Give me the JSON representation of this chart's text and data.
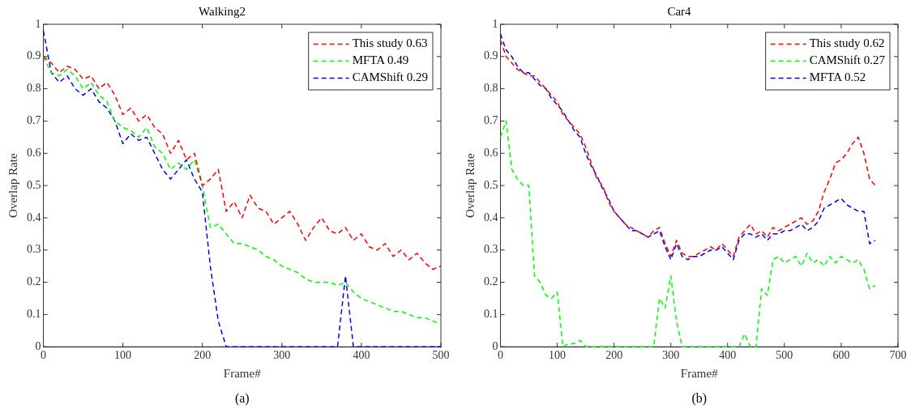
{
  "chart_data": [
    {
      "type": "line",
      "title": "Walking2",
      "xlabel": "Frame#",
      "ylabel": "Overlap Rate",
      "annotations": [
        "(a)"
      ],
      "x": [
        0,
        10,
        20,
        30,
        40,
        50,
        60,
        70,
        80,
        90,
        100,
        110,
        120,
        130,
        140,
        150,
        160,
        170,
        180,
        190,
        200,
        210,
        220,
        230,
        240,
        250,
        260,
        270,
        280,
        290,
        300,
        310,
        320,
        330,
        340,
        350,
        360,
        370,
        380,
        390,
        400,
        410,
        420,
        430,
        440,
        450,
        460,
        470,
        480,
        490,
        500
      ],
      "xlim": [
        0,
        500
      ],
      "xticks": [
        0,
        100,
        200,
        300,
        400,
        500
      ],
      "ylim": [
        0,
        1
      ],
      "yticks": [
        0,
        0.1,
        0.2,
        0.3,
        0.4,
        0.5,
        0.6,
        0.7,
        0.8,
        0.9,
        1
      ],
      "grid": false,
      "legend": "top right",
      "line_style": "dashed",
      "marker": "none",
      "series": [
        {
          "name": "This study 0.63",
          "color": "#ff0000",
          "values": [
            0.9,
            0.88,
            0.85,
            0.87,
            0.86,
            0.83,
            0.84,
            0.8,
            0.82,
            0.78,
            0.72,
            0.74,
            0.7,
            0.72,
            0.68,
            0.66,
            0.6,
            0.64,
            0.58,
            0.6,
            0.5,
            0.52,
            0.55,
            0.42,
            0.45,
            0.4,
            0.47,
            0.43,
            0.42,
            0.38,
            0.4,
            0.42,
            0.38,
            0.33,
            0.37,
            0.4,
            0.36,
            0.35,
            0.37,
            0.33,
            0.35,
            0.31,
            0.3,
            0.32,
            0.28,
            0.3,
            0.27,
            0.29,
            0.26,
            0.24,
            0.25
          ]
        },
        {
          "name": "MFTA 0.49",
          "color": "#00ff00",
          "values": [
            0.9,
            0.85,
            0.84,
            0.86,
            0.84,
            0.8,
            0.82,
            0.78,
            0.76,
            0.7,
            0.68,
            0.67,
            0.65,
            0.68,
            0.62,
            0.6,
            0.55,
            0.57,
            0.55,
            0.58,
            0.5,
            0.37,
            0.38,
            0.35,
            0.32,
            0.32,
            0.31,
            0.3,
            0.28,
            0.27,
            0.25,
            0.24,
            0.23,
            0.21,
            0.2,
            0.2,
            0.2,
            0.19,
            0.2,
            0.17,
            0.15,
            0.14,
            0.13,
            0.12,
            0.11,
            0.11,
            0.1,
            0.09,
            0.09,
            0.08,
            0.07
          ]
        },
        {
          "name": "CAMShift 0.29",
          "color": "#0000ff",
          "values": [
            0.98,
            0.85,
            0.82,
            0.84,
            0.8,
            0.78,
            0.8,
            0.76,
            0.74,
            0.7,
            0.63,
            0.66,
            0.64,
            0.65,
            0.6,
            0.55,
            0.52,
            0.55,
            0.58,
            0.52,
            0.48,
            0.25,
            0.08,
            0,
            0,
            0,
            0,
            0,
            0,
            0,
            0,
            0,
            0,
            0,
            0,
            0,
            0,
            0,
            0.22,
            0,
            0,
            0,
            0,
            0,
            0,
            0,
            0,
            0,
            0,
            0,
            0
          ]
        }
      ]
    },
    {
      "type": "line",
      "title": "Car4",
      "xlabel": "Frame#",
      "ylabel": "Overlap Rate",
      "annotations": [
        "(b)"
      ],
      "x": [
        0,
        10,
        20,
        30,
        40,
        50,
        60,
        70,
        80,
        90,
        100,
        110,
        120,
        130,
        140,
        150,
        160,
        170,
        180,
        190,
        200,
        210,
        220,
        230,
        240,
        250,
        260,
        270,
        280,
        290,
        300,
        310,
        320,
        330,
        340,
        350,
        360,
        370,
        380,
        390,
        400,
        410,
        420,
        430,
        440,
        450,
        460,
        470,
        480,
        490,
        500,
        510,
        520,
        530,
        540,
        550,
        560,
        570,
        580,
        590,
        600,
        610,
        620,
        630,
        640,
        650,
        660
      ],
      "xlim": [
        0,
        700
      ],
      "xticks": [
        0,
        100,
        200,
        300,
        400,
        500,
        600,
        700
      ],
      "ylim": [
        0,
        1
      ],
      "yticks": [
        0,
        0.1,
        0.2,
        0.3,
        0.4,
        0.5,
        0.6,
        0.7,
        0.8,
        0.9,
        1
      ],
      "grid": false,
      "legend": "top right",
      "line_style": "dashed",
      "marker": "none",
      "series": [
        {
          "name": "This study 0.62",
          "color": "#ff0000",
          "values": [
            0.95,
            0.9,
            0.88,
            0.86,
            0.85,
            0.84,
            0.84,
            0.82,
            0.8,
            0.78,
            0.76,
            0.72,
            0.7,
            0.68,
            0.66,
            0.62,
            0.57,
            0.52,
            0.5,
            0.45,
            0.42,
            0.4,
            0.38,
            0.37,
            0.36,
            0.35,
            0.34,
            0.36,
            0.37,
            0.32,
            0.28,
            0.33,
            0.29,
            0.28,
            0.28,
            0.29,
            0.3,
            0.31,
            0.3,
            0.32,
            0.3,
            0.28,
            0.34,
            0.36,
            0.38,
            0.35,
            0.36,
            0.34,
            0.37,
            0.36,
            0.37,
            0.38,
            0.39,
            0.4,
            0.38,
            0.39,
            0.42,
            0.48,
            0.52,
            0.57,
            0.58,
            0.6,
            0.63,
            0.65,
            0.6,
            0.52,
            0.5
          ]
        },
        {
          "name": "CAMShift 0.27",
          "color": "#00ff00",
          "values": [
            0.65,
            0.7,
            0.55,
            0.52,
            0.5,
            0.5,
            0.22,
            0.2,
            0.16,
            0.15,
            0.17,
            0,
            0.01,
            0.01,
            0.02,
            0,
            0,
            0,
            0,
            0,
            0,
            0,
            0,
            0,
            0,
            0,
            0,
            0,
            0.15,
            0.12,
            0.22,
            0.08,
            0,
            0,
            0,
            0,
            0,
            0,
            0,
            0,
            0,
            0,
            0,
            0.04,
            0,
            0,
            0.18,
            0.16,
            0.27,
            0.28,
            0.26,
            0.27,
            0.28,
            0.25,
            0.29,
            0.26,
            0.27,
            0.25,
            0.28,
            0.26,
            0.28,
            0.27,
            0.26,
            0.27,
            0.24,
            0.18,
            0.19
          ]
        },
        {
          "name": "MFTA 0.52",
          "color": "#0000ff",
          "values": [
            0.97,
            0.92,
            0.9,
            0.87,
            0.85,
            0.85,
            0.83,
            0.81,
            0.8,
            0.77,
            0.75,
            0.73,
            0.7,
            0.67,
            0.65,
            0.6,
            0.56,
            0.53,
            0.49,
            0.46,
            0.42,
            0.4,
            0.38,
            0.36,
            0.36,
            0.35,
            0.34,
            0.35,
            0.36,
            0.31,
            0.27,
            0.32,
            0.28,
            0.27,
            0.28,
            0.28,
            0.29,
            0.3,
            0.3,
            0.31,
            0.29,
            0.27,
            0.33,
            0.35,
            0.35,
            0.34,
            0.35,
            0.33,
            0.35,
            0.35,
            0.36,
            0.36,
            0.37,
            0.38,
            0.36,
            0.37,
            0.39,
            0.43,
            0.44,
            0.45,
            0.46,
            0.44,
            0.43,
            0.42,
            0.42,
            0.32,
            0.33
          ]
        }
      ]
    }
  ]
}
